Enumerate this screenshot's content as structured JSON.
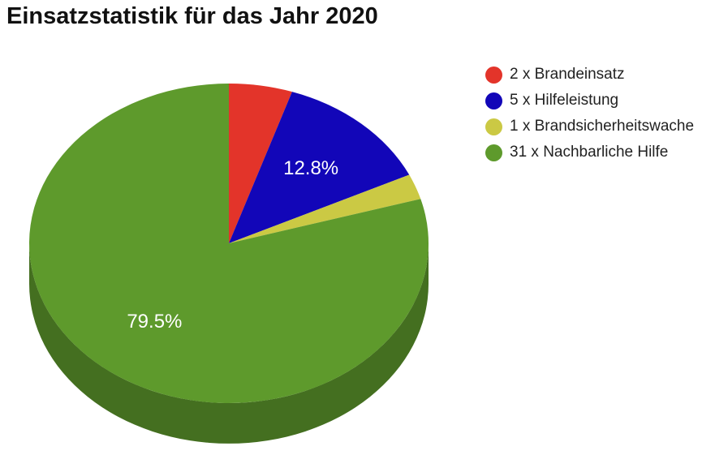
{
  "chart_data": {
    "type": "pie",
    "title": "Einsatzstatistik für das Jahr 2020",
    "slices": [
      {
        "label": "2 x Brandeinsatz",
        "value": 2,
        "color": "#e3342a",
        "pct_label": ""
      },
      {
        "label": "5 x Hilfeleistung",
        "value": 5,
        "color": "#1206b8",
        "pct_label": "12.8%"
      },
      {
        "label": "1 x Brandsicherheitswache",
        "value": 1,
        "color": "#cbc944",
        "pct_label": ""
      },
      {
        "label": "31 x Nachbarliche Hilfe",
        "value": 31,
        "color": "#5e9a2c",
        "pct_label": "79.5%"
      }
    ],
    "legend_position": "right",
    "style": "3d"
  }
}
